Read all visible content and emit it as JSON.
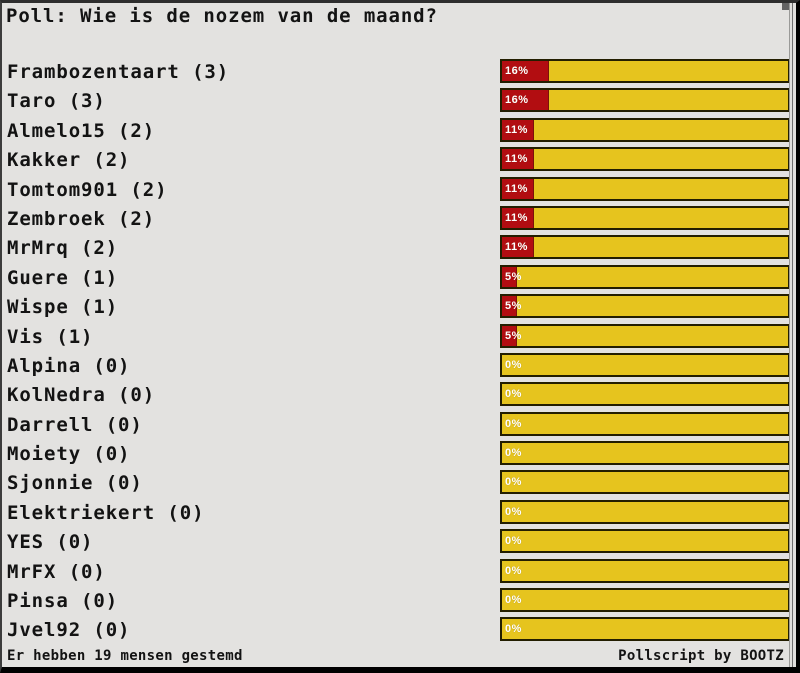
{
  "title": "Poll: Wie is de nozem van de maand?",
  "footer": {
    "left": "Er hebben 19 mensen gestemd",
    "right": "Pollscript by BOOTZ"
  },
  "colors": {
    "page_bg": "#e3e2e0",
    "bar_fill_red": "#b20d11",
    "bar_bg_yellow": "#e6c41e",
    "bar_border": "#231e00",
    "percent_text": "#ffffff",
    "text": "#131313"
  },
  "poll": {
    "items": [
      {
        "label": "Frambozentaart (3)",
        "name": "Frambozentaart",
        "votes": 3,
        "pct": 16,
        "pct_label": "16%"
      },
      {
        "label": "Taro (3)",
        "name": "Taro",
        "votes": 3,
        "pct": 16,
        "pct_label": "16%"
      },
      {
        "label": "Almelo15 (2)",
        "name": "Almelo15",
        "votes": 2,
        "pct": 11,
        "pct_label": "11%"
      },
      {
        "label": "Kakker (2)",
        "name": "Kakker",
        "votes": 2,
        "pct": 11,
        "pct_label": "11%"
      },
      {
        "label": "Tomtom901 (2)",
        "name": "Tomtom901",
        "votes": 2,
        "pct": 11,
        "pct_label": "11%"
      },
      {
        "label": "Zembroek (2)",
        "name": "Zembroek",
        "votes": 2,
        "pct": 11,
        "pct_label": "11%"
      },
      {
        "label": "MrMrq (2)",
        "name": "MrMrq",
        "votes": 2,
        "pct": 11,
        "pct_label": "11%"
      },
      {
        "label": "Guere (1)",
        "name": "Guere",
        "votes": 1,
        "pct": 5,
        "pct_label": "5%"
      },
      {
        "label": "Wispe (1)",
        "name": "Wispe",
        "votes": 1,
        "pct": 5,
        "pct_label": "5%"
      },
      {
        "label": "Vis (1)",
        "name": "Vis",
        "votes": 1,
        "pct": 5,
        "pct_label": "5%"
      },
      {
        "label": "Alpina (0)",
        "name": "Alpina",
        "votes": 0,
        "pct": 0,
        "pct_label": "0%"
      },
      {
        "label": "KolNedra (0)",
        "name": "KolNedra",
        "votes": 0,
        "pct": 0,
        "pct_label": "0%"
      },
      {
        "label": "Darrell (0)",
        "name": "Darrell",
        "votes": 0,
        "pct": 0,
        "pct_label": "0%"
      },
      {
        "label": "Moiety (0)",
        "name": "Moiety",
        "votes": 0,
        "pct": 0,
        "pct_label": "0%"
      },
      {
        "label": "Sjonnie (0)",
        "name": "Sjonnie",
        "votes": 0,
        "pct": 0,
        "pct_label": "0%"
      },
      {
        "label": "Elektriekert (0)",
        "name": "Elektriekert",
        "votes": 0,
        "pct": 0,
        "pct_label": "0%"
      },
      {
        "label": "YES (0)",
        "name": "YES",
        "votes": 0,
        "pct": 0,
        "pct_label": "0%"
      },
      {
        "label": "MrFX (0)",
        "name": "MrFX",
        "votes": 0,
        "pct": 0,
        "pct_label": "0%"
      },
      {
        "label": "Pinsa (0)",
        "name": "Pinsa",
        "votes": 0,
        "pct": 0,
        "pct_label": "0%"
      },
      {
        "label": "Jvel92 (0)",
        "name": "Jvel92",
        "votes": 0,
        "pct": 0,
        "pct_label": "0%"
      }
    ]
  },
  "chart_data": {
    "type": "bar",
    "orientation": "horizontal",
    "title": "Poll: Wie is de nozem van de maand?",
    "categories": [
      "Frambozentaart",
      "Taro",
      "Almelo15",
      "Kakker",
      "Tomtom901",
      "Zembroek",
      "MrMrq",
      "Guere",
      "Wispe",
      "Vis",
      "Alpina",
      "KolNedra",
      "Darrell",
      "Moiety",
      "Sjonnie",
      "Elektriekert",
      "YES",
      "MrFX",
      "Pinsa",
      "Jvel92"
    ],
    "series": [
      {
        "name": "votes",
        "values": [
          3,
          3,
          2,
          2,
          2,
          2,
          2,
          1,
          1,
          1,
          0,
          0,
          0,
          0,
          0,
          0,
          0,
          0,
          0,
          0
        ]
      },
      {
        "name": "percent",
        "values": [
          16,
          16,
          11,
          11,
          11,
          11,
          11,
          5,
          5,
          5,
          0,
          0,
          0,
          0,
          0,
          0,
          0,
          0,
          0,
          0
        ]
      }
    ],
    "data_labels": [
      "16%",
      "16%",
      "11%",
      "11%",
      "11%",
      "11%",
      "11%",
      "5%",
      "5%",
      "5%",
      "0%",
      "0%",
      "0%",
      "0%",
      "0%",
      "0%",
      "0%",
      "0%",
      "0%",
      "0%"
    ],
    "xlabel": "",
    "ylabel": "",
    "xlim": [
      0,
      100
    ],
    "grid": false,
    "legend": false,
    "total_votes": 19,
    "footnote": "Er hebben 19 mensen gestemd",
    "credit": "Pollscript by BOOTZ"
  }
}
